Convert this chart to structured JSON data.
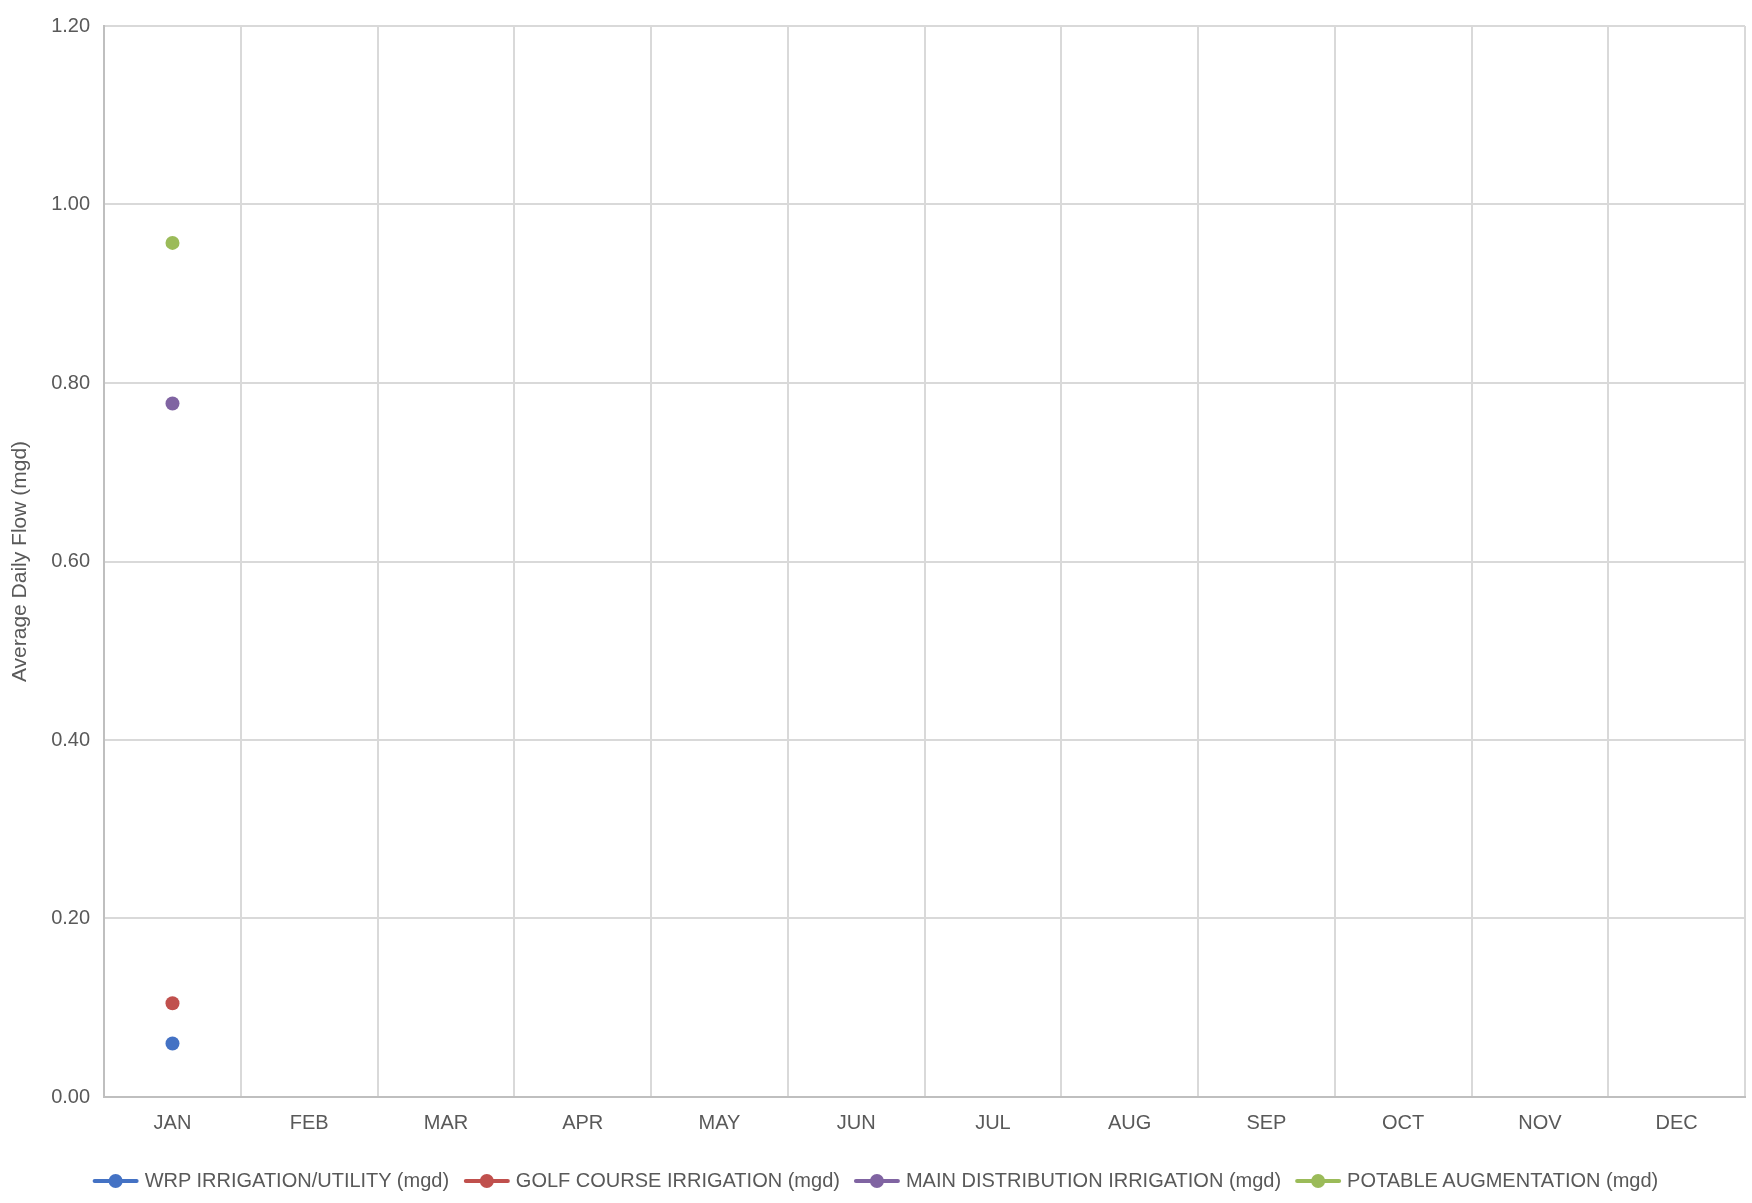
{
  "chart_data": {
    "type": "line",
    "ylabel": "Average Daily Flow (mgd)",
    "categories": [
      "JAN",
      "FEB",
      "MAR",
      "APR",
      "MAY",
      "JUN",
      "JUL",
      "AUG",
      "SEP",
      "OCT",
      "NOV",
      "DEC"
    ],
    "series": [
      {
        "name": "WRP IRRIGATION/UTILITY (mgd)",
        "color": "#4472c4",
        "values": [
          0.06,
          null,
          null,
          null,
          null,
          null,
          null,
          null,
          null,
          null,
          null,
          null
        ]
      },
      {
        "name": "GOLF COURSE IRRIGATION (mgd)",
        "color": "#c0504d",
        "values": [
          0.105,
          null,
          null,
          null,
          null,
          null,
          null,
          null,
          null,
          null,
          null,
          null
        ]
      },
      {
        "name": "MAIN DISTRIBUTION IRRIGATION (mgd)",
        "color": "#8064a2",
        "values": [
          0.777,
          null,
          null,
          null,
          null,
          null,
          null,
          null,
          null,
          null,
          null,
          null
        ]
      },
      {
        "name": "POTABLE AUGMENTATION (mgd)",
        "color": "#9bbb59",
        "values": [
          0.957,
          null,
          null,
          null,
          null,
          null,
          null,
          null,
          null,
          null,
          null,
          null
        ]
      }
    ],
    "ylim": [
      0,
      1.2
    ],
    "yticks": [
      {
        "value": 0,
        "label": "0.00"
      },
      {
        "value": 0.2,
        "label": "0.20"
      },
      {
        "value": 0.4,
        "label": "0.40"
      },
      {
        "value": 0.6,
        "label": "0.60"
      },
      {
        "value": 0.8,
        "label": "0.80"
      },
      {
        "value": 1.0,
        "label": "1.00"
      },
      {
        "value": 1.2,
        "label": "1.20"
      }
    ],
    "grid": true,
    "legend": "bottom",
    "marker": "circle",
    "line_style": "solid"
  }
}
